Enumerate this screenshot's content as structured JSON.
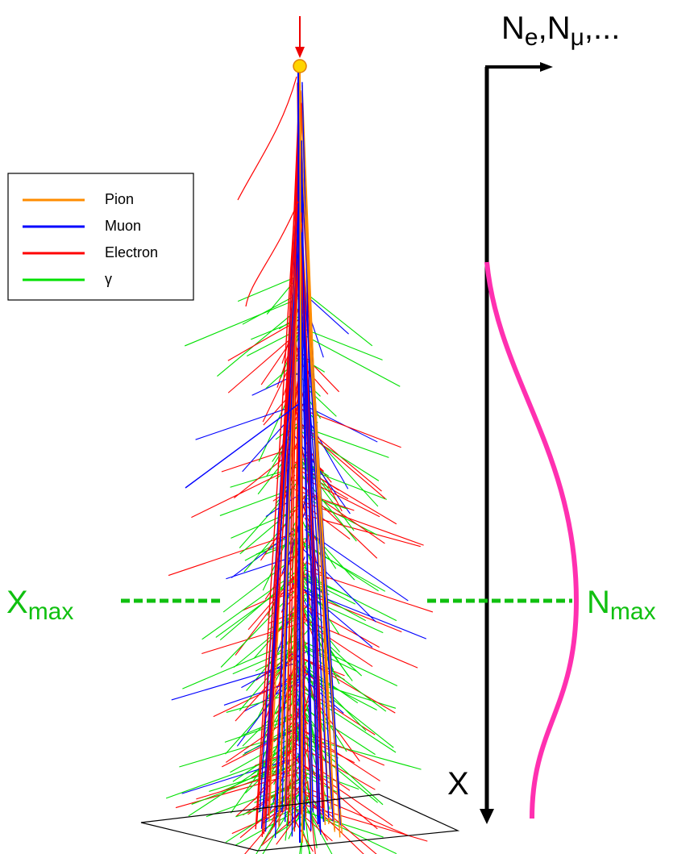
{
  "legend": {
    "items": [
      {
        "label": "Pion",
        "color": "#ff8c00"
      },
      {
        "label": "Muon",
        "color": "#0000ff"
      },
      {
        "label": "Electron",
        "color": "#ff0000"
      },
      {
        "label": "γ",
        "color": "#00e000"
      }
    ]
  },
  "axis_label_top": [
    {
      "text": "N",
      "sub": false
    },
    {
      "text": "e",
      "sub": true
    },
    {
      "text": ",",
      "sub": false
    },
    {
      "text": "N",
      "sub": false
    },
    {
      "text": "μ",
      "sub": true
    },
    {
      "text": ",...",
      "sub": false
    }
  ],
  "axis_label_depth": "X",
  "xmax_label": [
    {
      "text": "X",
      "sub": false
    },
    {
      "text": "max",
      "sub": true
    }
  ],
  "nmax_label": [
    {
      "text": "N",
      "sub": false
    },
    {
      "text": "max",
      "sub": true
    }
  ]
}
